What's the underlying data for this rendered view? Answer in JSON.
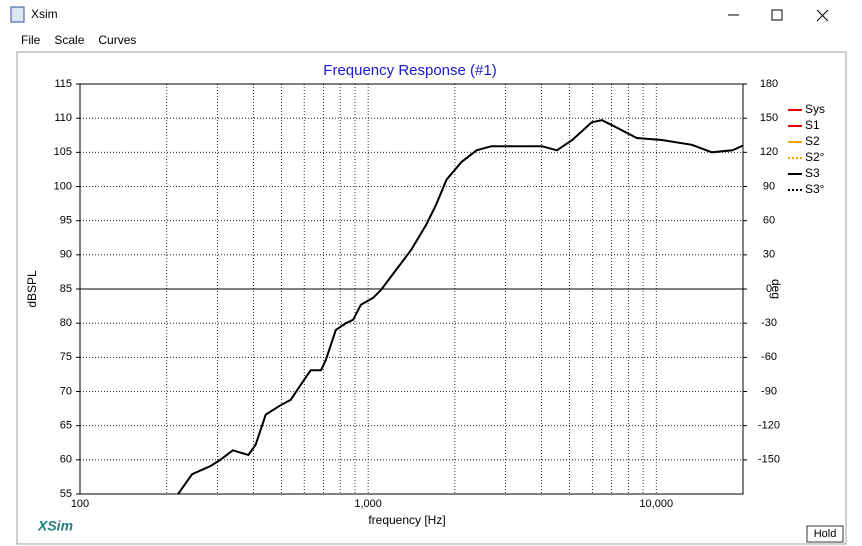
{
  "window": {
    "title": "Xsim",
    "menu": [
      "File",
      "Scale",
      "Curves"
    ],
    "brand": "XSim",
    "hold_button": "Hold"
  },
  "chart_data": {
    "type": "line",
    "title": "Frequency Response (#1)",
    "x_label": "frequency [Hz]",
    "y_label": "dBSPL",
    "y2_label": "deg",
    "xlim": [
      100,
      20000
    ],
    "log_x": true,
    "xticks": [
      100,
      {
        "value": 1000,
        "label": "1,000"
      },
      {
        "value": 10000,
        "label": "10,000"
      }
    ],
    "x_minor_grid": [
      200,
      300,
      400,
      500,
      600,
      700,
      800,
      900,
      2000,
      3000,
      4000,
      5000,
      6000,
      7000,
      8000,
      9000
    ],
    "ylim": [
      55,
      115
    ],
    "yticks": [
      55,
      60,
      65,
      70,
      75,
      80,
      85,
      90,
      95,
      100,
      105,
      110,
      115
    ],
    "y2lim": [
      -180,
      180
    ],
    "y2ticks": [
      180,
      150,
      120,
      90,
      60,
      30,
      0,
      -30,
      -60,
      -90,
      -120,
      -150
    ],
    "grid": true,
    "legend": [
      {
        "name": "Sys",
        "color": "#e00000",
        "dashed": false
      },
      {
        "name": "S1",
        "color": "#e00000",
        "dashed": false
      },
      {
        "name": "S2",
        "color": "#ffa500",
        "dashed": false
      },
      {
        "name": "S2°",
        "color": "#ffa500",
        "dashed": true
      },
      {
        "name": "S3",
        "color": "#000000",
        "dashed": false
      },
      {
        "name": "S3°",
        "color": "#000000",
        "dashed": true
      }
    ],
    "series": [
      {
        "name": "S3",
        "color": "#000000",
        "x": [
          219,
          245,
          284,
          307,
          339,
          384,
          407,
          441,
          497,
          539,
          584,
          632,
          686,
          713,
          772,
          837,
          887,
          944,
          1040,
          1110,
          1250,
          1410,
          1590,
          1720,
          1870,
          2110,
          2380,
          2680,
          4010,
          4520,
          5110,
          5970,
          6480,
          7300,
          8550,
          10450,
          13300,
          15600,
          18400,
          20000
        ],
        "values": [
          55,
          57.9,
          59.1,
          60,
          61.4,
          60.7,
          62.2,
          66.6,
          68,
          68.8,
          71,
          73.1,
          73.1,
          74.6,
          79,
          80,
          80.5,
          82.7,
          83.7,
          84.9,
          87.8,
          90.7,
          94.4,
          97.3,
          101,
          103.6,
          105.3,
          105.9,
          105.9,
          105.3,
          106.8,
          109.4,
          109.7,
          108.6,
          107.1,
          106.8,
          106.1,
          105,
          105.3,
          106
        ]
      }
    ]
  }
}
